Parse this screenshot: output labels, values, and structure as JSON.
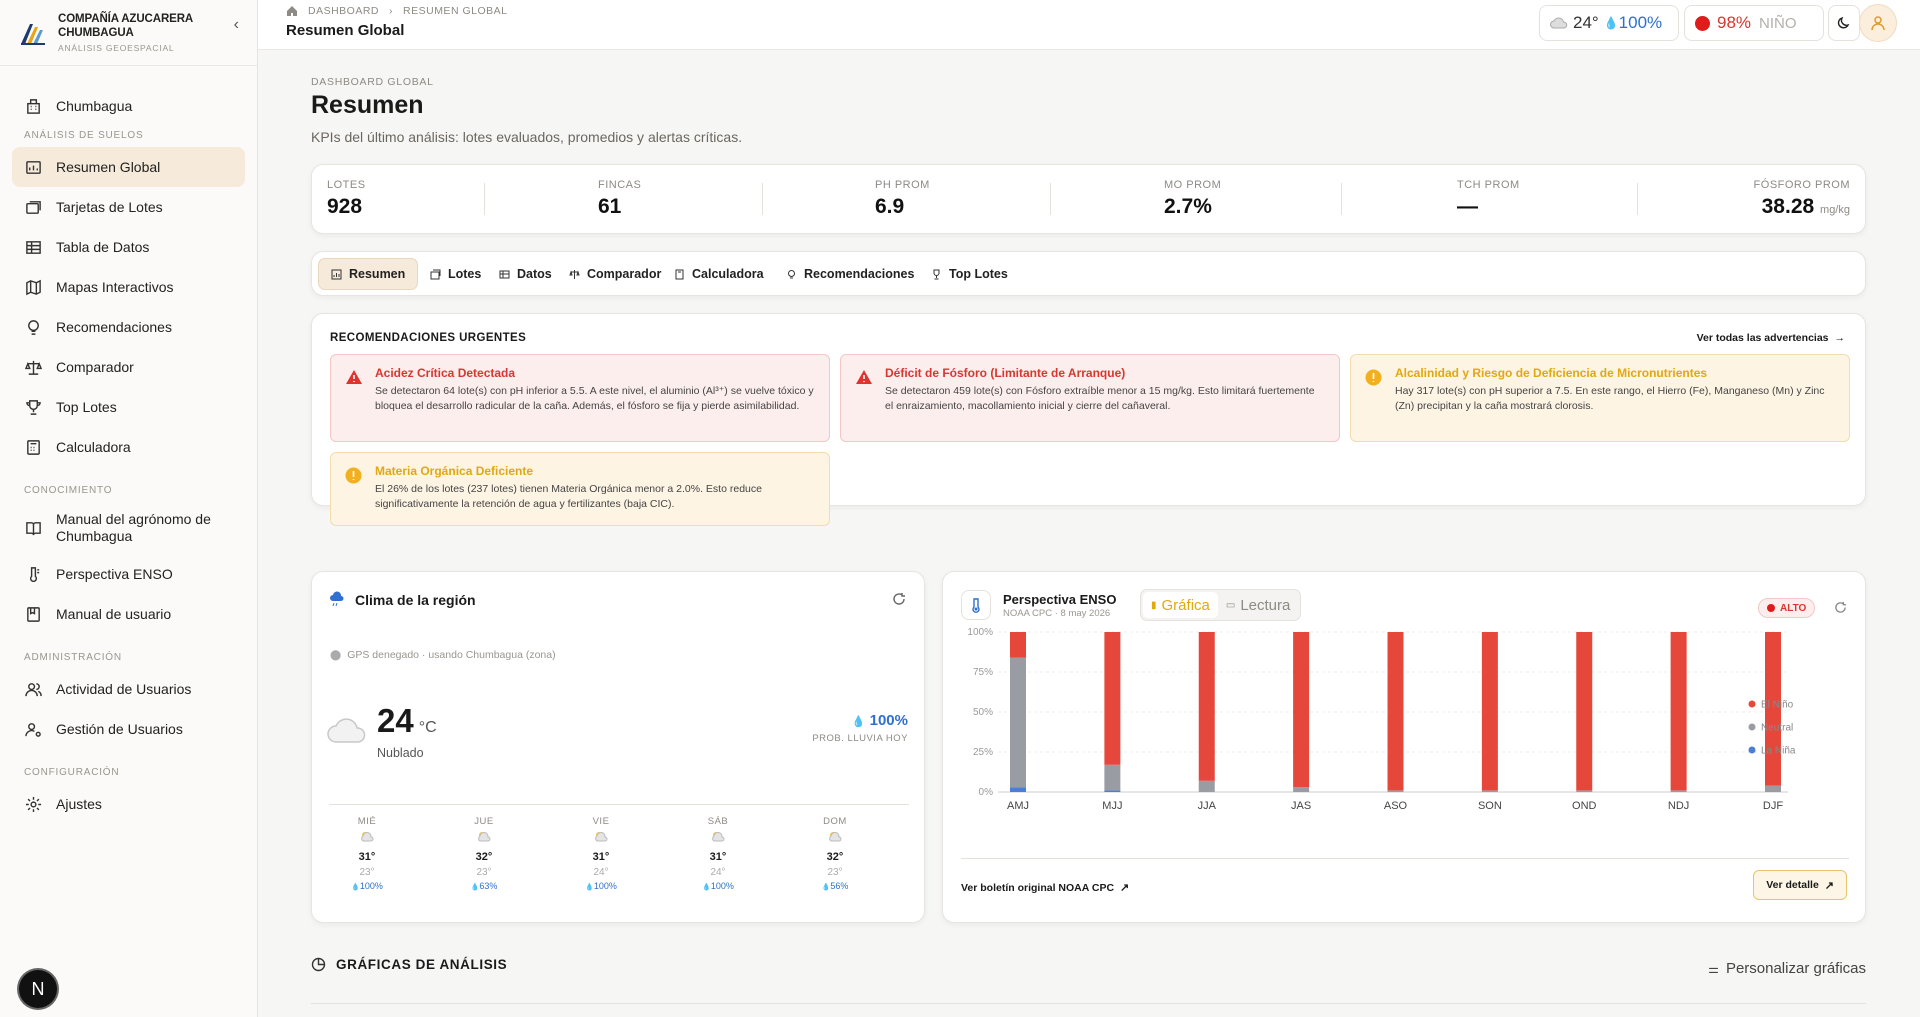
{
  "brand": {
    "name_line1": "COMPAÑÍA AZUCARERA",
    "name_line2": "CHUMBAGUA",
    "subtitle": "ANÁLISIS GEOESPACIAL"
  },
  "sidebar": {
    "home": "Chumbagua",
    "sections": [
      {
        "title": "ANÁLISIS DE SUELOS",
        "items": [
          {
            "label": "Resumen Global",
            "icon": "chart-icon",
            "active": true
          },
          {
            "label": "Tarjetas de Lotes",
            "icon": "cards-icon"
          },
          {
            "label": "Tabla de Datos",
            "icon": "table-icon"
          },
          {
            "label": "Mapas Interactivos",
            "icon": "map-icon"
          },
          {
            "label": "Recomendaciones",
            "icon": "lightbulb-icon"
          },
          {
            "label": "Comparador",
            "icon": "scale-icon"
          },
          {
            "label": "Top Lotes",
            "icon": "trophy-icon"
          },
          {
            "label": "Calculadora",
            "icon": "calculator-icon"
          }
        ]
      },
      {
        "title": "CONOCIMIENTO",
        "items": [
          {
            "label": "Manual del agrónomo de Chumbagua",
            "icon": "book-icon"
          },
          {
            "label": "Perspectiva ENSO",
            "icon": "thermometer-icon"
          },
          {
            "label": "Manual de usuario",
            "icon": "manual-icon"
          }
        ]
      },
      {
        "title": "ADMINISTRACIÓN",
        "items": [
          {
            "label": "Actividad de Usuarios",
            "icon": "users-icon"
          },
          {
            "label": "Gestión de Usuarios",
            "icon": "user-gear-icon"
          }
        ]
      },
      {
        "title": "CONFIGURACIÓN",
        "items": [
          {
            "label": "Ajustes",
            "icon": "gear-icon"
          }
        ]
      }
    ],
    "fab": "N"
  },
  "topbar": {
    "breadcrumb": [
      "DASHBOARD",
      "RESUMEN GLOBAL"
    ],
    "title": "Resumen Global",
    "weather_temp": "24°",
    "weather_rain": "100%",
    "enso_pct": "98%",
    "enso_label": "NIÑO"
  },
  "header": {
    "eyebrow": "DASHBOARD GLOBAL",
    "title": "Resumen",
    "subtitle": "KPIs del último análisis: lotes evaluados, promedios y alertas críticas."
  },
  "kpis": [
    {
      "label": "LOTES",
      "value": "928",
      "unit": ""
    },
    {
      "label": "FINCAS",
      "value": "61",
      "unit": ""
    },
    {
      "label": "PH PROM",
      "value": "6.9",
      "unit": ""
    },
    {
      "label": "MO PROM",
      "value": "2.7%",
      "unit": ""
    },
    {
      "label": "TCH PROM",
      "value": "—",
      "unit": ""
    },
    {
      "label": "FÓSFORO PROM",
      "value": "38.28",
      "unit": "mg/kg"
    }
  ],
  "tabs": [
    "Resumen",
    "Lotes",
    "Datos",
    "Comparador",
    "Calculadora",
    "Recomendaciones",
    "Top Lotes"
  ],
  "recs": {
    "title": "RECOMENDACIONES URGENTES",
    "link": "Ver todas las advertencias",
    "items": [
      {
        "level": "red",
        "title": "Acidez Crítica Detectada",
        "body": "Se detectaron 64 lote(s) con pH inferior a 5.5. A este nivel, el aluminio (Al³⁺) se vuelve tóxico y bloquea el desarrollo radicular de la caña. Además, el fósforo se fija y pierde asimilabilidad."
      },
      {
        "level": "red",
        "title": "Déficit de Fósforo (Limitante de Arranque)",
        "body": "Se detectaron 459 lote(s) con Fósforo extraíble menor a 15 mg/kg. Esto limitará fuertemente el enraizamiento, macollamiento inicial y cierre del cañaveral."
      },
      {
        "level": "yel",
        "title": "Alcalinidad y Riesgo de Deficiencia de Micronutrientes",
        "body": "Hay 317 lote(s) con pH superior a 7.5. En este rango, el Hierro (Fe), Manganeso (Mn) y Zinc (Zn) precipitan y la caña mostrará clorosis."
      },
      {
        "level": "yel",
        "title": "Materia Orgánica Deficiente",
        "body": "El 26% de los lotes (237 lotes) tienen Materia Orgánica menor a 2.0%. Esto reduce significativamente la retención de agua y fertilizantes (baja CIC)."
      }
    ]
  },
  "climate": {
    "title": "Clima de la región",
    "gps": "GPS denegado · usando Chumbagua (zona)",
    "temp": "24",
    "unit": "°C",
    "condition": "Nublado",
    "rain": "100%",
    "rain_label": "PROB. LLUVIA HOY",
    "forecast": [
      {
        "day": "MIÉ",
        "high": "31°",
        "low": "23°",
        "rain": "100%"
      },
      {
        "day": "JUE",
        "high": "32°",
        "low": "23°",
        "rain": "63%"
      },
      {
        "day": "VIE",
        "high": "31°",
        "low": "24°",
        "rain": "100%"
      },
      {
        "day": "SÁB",
        "high": "31°",
        "low": "24°",
        "rain": "100%"
      },
      {
        "day": "DOM",
        "high": "32°",
        "low": "23°",
        "rain": "56%"
      }
    ]
  },
  "enso": {
    "title": "Perspectiva ENSO",
    "source": "NOAA CPC · 8 may 2026",
    "tab_chart": "Gráfica",
    "tab_read": "Lectura",
    "badge": "ALTO",
    "link": "Ver boletín original NOAA CPC",
    "detail": "Ver detalle"
  },
  "chart_data": {
    "type": "bar",
    "stacked": true,
    "categories": [
      "AMJ",
      "MJJ",
      "JJA",
      "JAS",
      "ASO",
      "SON",
      "OND",
      "NDJ",
      "DJF"
    ],
    "series": [
      {
        "name": "La Niña",
        "color": "#4a7fd4",
        "values": [
          3,
          1,
          0,
          0,
          0,
          0,
          0,
          0,
          0
        ]
      },
      {
        "name": "Neutral",
        "color": "#9a9ca3",
        "values": [
          81,
          16,
          7,
          3,
          1,
          1,
          1,
          1,
          4
        ]
      },
      {
        "name": "El Niño",
        "color": "#e5483b",
        "values": [
          16,
          83,
          93,
          97,
          99,
          99,
          99,
          99,
          96
        ]
      }
    ],
    "yticks": [
      "100%",
      "75%",
      "50%",
      "25%",
      "0%"
    ],
    "ylim": [
      0,
      100
    ],
    "legend": "right"
  },
  "analysis": {
    "title": "GRÁFICAS DE ANÁLISIS",
    "customize": "Personalizar gráficas"
  }
}
